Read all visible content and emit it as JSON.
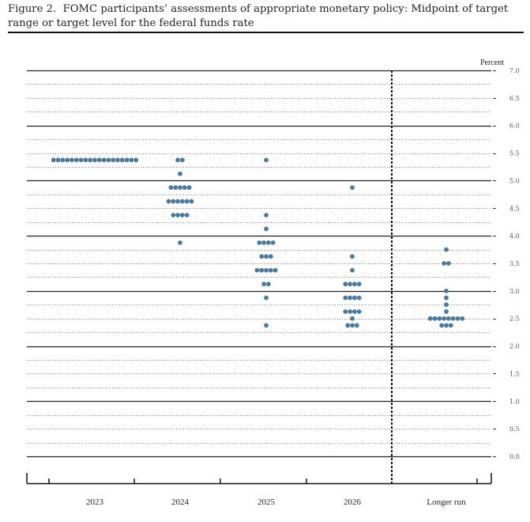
{
  "caption": {
    "label": "Figure 2.",
    "text": "FOMC participants’ assessments of appropriate monetary policy: Midpoint of target range or target level for the federal funds rate"
  },
  "chart_data": {
    "type": "scatter",
    "subtype": "dot-plot",
    "ylabel": "Percent",
    "ylim": [
      0,
      7.0
    ],
    "y_ticks": [
      "7.0",
      "6.5",
      "6.0",
      "5.5",
      "5.0",
      "4.5",
      "4.0",
      "3.5",
      "3.0",
      "2.5",
      "2.0",
      "1.5",
      "1.0",
      "0.5",
      "0.0"
    ],
    "categories": [
      "2023",
      "2024",
      "2025",
      "2026",
      "Longer run"
    ],
    "separator_before": "Longer run",
    "dot_color": "#4a7a9c",
    "projections": [
      {
        "category": "2023",
        "counts": [
          {
            "value": 5.375,
            "count": 19
          }
        ]
      },
      {
        "category": "2024",
        "counts": [
          {
            "value": 5.375,
            "count": 2
          },
          {
            "value": 5.125,
            "count": 1
          },
          {
            "value": 4.875,
            "count": 5
          },
          {
            "value": 4.625,
            "count": 6
          },
          {
            "value": 4.375,
            "count": 4
          },
          {
            "value": 3.875,
            "count": 1
          }
        ]
      },
      {
        "category": "2025",
        "counts": [
          {
            "value": 5.375,
            "count": 1
          },
          {
            "value": 4.375,
            "count": 1
          },
          {
            "value": 4.125,
            "count": 1
          },
          {
            "value": 3.875,
            "count": 4
          },
          {
            "value": 3.625,
            "count": 3
          },
          {
            "value": 3.375,
            "count": 5
          },
          {
            "value": 3.125,
            "count": 2
          },
          {
            "value": 2.875,
            "count": 1
          },
          {
            "value": 2.375,
            "count": 1
          }
        ]
      },
      {
        "category": "2026",
        "counts": [
          {
            "value": 4.875,
            "count": 1
          },
          {
            "value": 3.625,
            "count": 1
          },
          {
            "value": 3.375,
            "count": 1
          },
          {
            "value": 3.125,
            "count": 4
          },
          {
            "value": 2.875,
            "count": 4
          },
          {
            "value": 2.625,
            "count": 4
          },
          {
            "value": 2.5,
            "count": 1
          },
          {
            "value": 2.375,
            "count": 3
          }
        ]
      },
      {
        "category": "Longer run",
        "counts": [
          {
            "value": 3.75,
            "count": 1
          },
          {
            "value": 3.5,
            "count": 2
          },
          {
            "value": 3.0,
            "count": 1
          },
          {
            "value": 2.875,
            "count": 1
          },
          {
            "value": 2.75,
            "count": 1
          },
          {
            "value": 2.625,
            "count": 1
          },
          {
            "value": 2.5,
            "count": 8
          },
          {
            "value": 2.375,
            "count": 3
          }
        ]
      }
    ]
  }
}
